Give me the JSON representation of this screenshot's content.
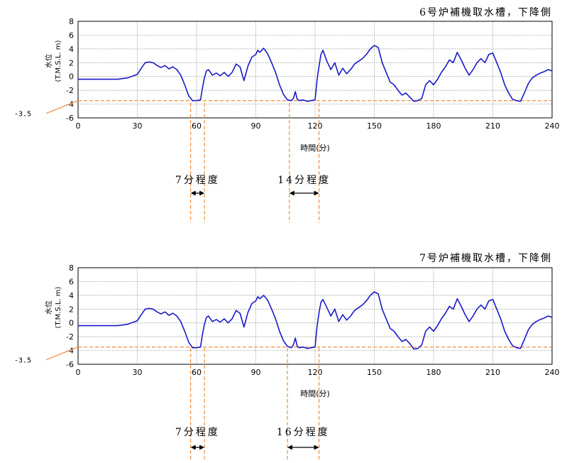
{
  "chart_data": [
    {
      "type": "line",
      "title": "6号炉補機取水槽，下降側",
      "xlabel": "時間(分)",
      "ylabel": [
        "水位",
        "(T.M.S.L. m)"
      ],
      "xlim": [
        0,
        240
      ],
      "ylim": [
        -6,
        8
      ],
      "xticks": [
        0,
        30,
        60,
        90,
        120,
        150,
        180,
        210,
        240
      ],
      "yticks": [
        8,
        6,
        4,
        2,
        0,
        -2,
        -4,
        -6
      ],
      "grid": true,
      "reference_line": {
        "value": -3.5,
        "label": "-3.5",
        "color": "#f08c3c"
      },
      "color": "#1a1ac8",
      "series": [
        {
          "x": [
            0,
            20,
            25,
            30,
            32,
            34,
            36,
            38,
            40,
            42,
            44,
            46,
            48,
            50,
            52,
            54,
            56,
            58,
            59,
            60,
            62,
            63,
            64,
            65,
            66,
            68,
            70,
            72,
            74,
            76,
            78,
            80,
            82,
            84,
            86,
            88,
            90,
            91,
            92,
            94,
            96,
            98,
            100,
            102,
            104,
            106,
            108,
            109,
            110,
            111,
            112,
            114,
            116,
            118,
            120,
            121,
            122,
            123,
            124,
            126,
            128,
            130,
            132,
            134,
            136,
            138,
            140,
            142,
            144,
            146,
            148,
            150,
            152,
            154,
            156,
            158,
            160,
            162,
            164,
            166,
            168,
            170,
            172,
            174,
            176,
            178,
            180,
            182,
            184,
            186,
            188,
            190,
            192,
            194,
            196,
            198,
            200,
            202,
            204,
            206,
            208,
            210,
            212,
            214,
            216,
            218,
            220,
            222,
            224,
            226,
            228,
            230,
            232,
            234,
            236,
            238,
            240
          ],
          "y": [
            -0.4,
            -0.4,
            -0.2,
            0.3,
            1.2,
            2.0,
            2.1,
            2.0,
            1.6,
            1.3,
            1.6,
            1.1,
            1.4,
            1.0,
            0.2,
            -1.2,
            -2.8,
            -3.5,
            -3.5,
            -3.5,
            -3.4,
            -1.6,
            -0.2,
            0.8,
            1.0,
            0.2,
            0.5,
            0.1,
            0.6,
            0.0,
            0.6,
            1.8,
            1.4,
            -0.6,
            1.5,
            2.8,
            3.2,
            3.8,
            3.5,
            4.1,
            3.3,
            2.0,
            0.6,
            -1.2,
            -2.6,
            -3.4,
            -3.5,
            -3.2,
            -2.2,
            -3.3,
            -3.5,
            -3.4,
            -3.6,
            -3.5,
            -3.4,
            -0.5,
            1.5,
            3.2,
            3.8,
            2.2,
            1.0,
            2.0,
            0.2,
            1.2,
            0.4,
            1.0,
            1.8,
            2.2,
            2.6,
            3.2,
            4.0,
            4.5,
            4.2,
            2.0,
            0.6,
            -0.8,
            -1.2,
            -2.0,
            -2.7,
            -2.4,
            -3.0,
            -3.6,
            -3.5,
            -3.2,
            -1.2,
            -0.6,
            -1.2,
            -0.4,
            0.6,
            1.4,
            2.4,
            2.0,
            3.5,
            2.4,
            1.2,
            0.2,
            1.0,
            2.0,
            2.6,
            2.0,
            3.2,
            3.4,
            2.0,
            0.6,
            -1.2,
            -2.4,
            -3.3,
            -3.5,
            -3.6,
            -2.4,
            -1.0,
            -0.2,
            0.2,
            0.5,
            0.7,
            1.0,
            0.8
          ]
        }
      ],
      "annotations": [
        {
          "label": "7分程度",
          "x_start": 57,
          "x_end": 64
        },
        {
          "label": "14分程度",
          "x_start": 107,
          "x_end": 122
        }
      ]
    },
    {
      "type": "line",
      "title": "7号炉補機取水槽，下降側",
      "xlabel": "時間(分)",
      "ylabel": [
        "水位",
        "(T.M.S.L. m)"
      ],
      "xlim": [
        0,
        240
      ],
      "ylim": [
        -6,
        8
      ],
      "xticks": [
        0,
        30,
        60,
        90,
        120,
        150,
        180,
        210,
        240
      ],
      "yticks": [
        8,
        6,
        4,
        2,
        0,
        -2,
        -4,
        -6
      ],
      "grid": true,
      "reference_line": {
        "value": -3.5,
        "label": "-3.5",
        "color": "#f08c3c"
      },
      "color": "#1a1ac8",
      "series": [
        {
          "x": [
            0,
            20,
            25,
            30,
            32,
            34,
            36,
            38,
            40,
            42,
            44,
            46,
            48,
            50,
            52,
            54,
            56,
            58,
            59,
            60,
            62,
            63,
            64,
            65,
            66,
            68,
            70,
            72,
            74,
            76,
            78,
            80,
            82,
            84,
            86,
            88,
            90,
            91,
            92,
            94,
            96,
            98,
            100,
            102,
            104,
            106,
            108,
            109,
            110,
            111,
            112,
            114,
            116,
            118,
            120,
            121,
            122,
            123,
            124,
            126,
            128,
            130,
            132,
            134,
            136,
            138,
            140,
            142,
            144,
            146,
            148,
            150,
            152,
            154,
            156,
            158,
            160,
            162,
            164,
            166,
            168,
            170,
            172,
            174,
            176,
            178,
            180,
            182,
            184,
            186,
            188,
            190,
            192,
            194,
            196,
            198,
            200,
            202,
            204,
            206,
            208,
            210,
            212,
            214,
            216,
            218,
            220,
            222,
            224,
            226,
            228,
            230,
            232,
            234,
            236,
            238,
            240
          ],
          "y": [
            -0.4,
            -0.4,
            -0.2,
            0.3,
            1.2,
            2.0,
            2.1,
            2.0,
            1.6,
            1.3,
            1.6,
            1.1,
            1.4,
            1.0,
            0.2,
            -1.2,
            -2.8,
            -3.6,
            -3.6,
            -3.6,
            -3.5,
            -1.6,
            -0.2,
            0.8,
            1.0,
            0.2,
            0.5,
            0.1,
            0.6,
            0.0,
            0.6,
            1.8,
            1.4,
            -0.6,
            1.5,
            2.8,
            3.2,
            3.8,
            3.5,
            4.0,
            3.3,
            2.0,
            0.6,
            -1.2,
            -2.6,
            -3.4,
            -3.6,
            -3.2,
            -2.2,
            -3.4,
            -3.6,
            -3.5,
            -3.7,
            -3.6,
            -3.5,
            -0.5,
            1.5,
            3.0,
            3.4,
            2.2,
            1.0,
            2.0,
            0.2,
            1.2,
            0.4,
            1.0,
            1.8,
            2.2,
            2.6,
            3.2,
            4.0,
            4.5,
            4.2,
            2.0,
            0.6,
            -0.8,
            -1.2,
            -2.0,
            -2.7,
            -2.4,
            -3.0,
            -3.8,
            -3.7,
            -3.2,
            -1.2,
            -0.6,
            -1.2,
            -0.4,
            0.6,
            1.4,
            2.4,
            2.0,
            3.5,
            2.4,
            1.2,
            0.2,
            1.0,
            2.0,
            2.6,
            2.0,
            3.2,
            3.4,
            2.0,
            0.6,
            -1.2,
            -2.4,
            -3.3,
            -3.6,
            -3.7,
            -2.4,
            -1.0,
            -0.2,
            0.2,
            0.5,
            0.7,
            1.0,
            0.8
          ]
        }
      ],
      "annotations": [
        {
          "label": "7分程度",
          "x_start": 57,
          "x_end": 64
        },
        {
          "label": "16分程度",
          "x_start": 106,
          "x_end": 122
        }
      ]
    }
  ]
}
